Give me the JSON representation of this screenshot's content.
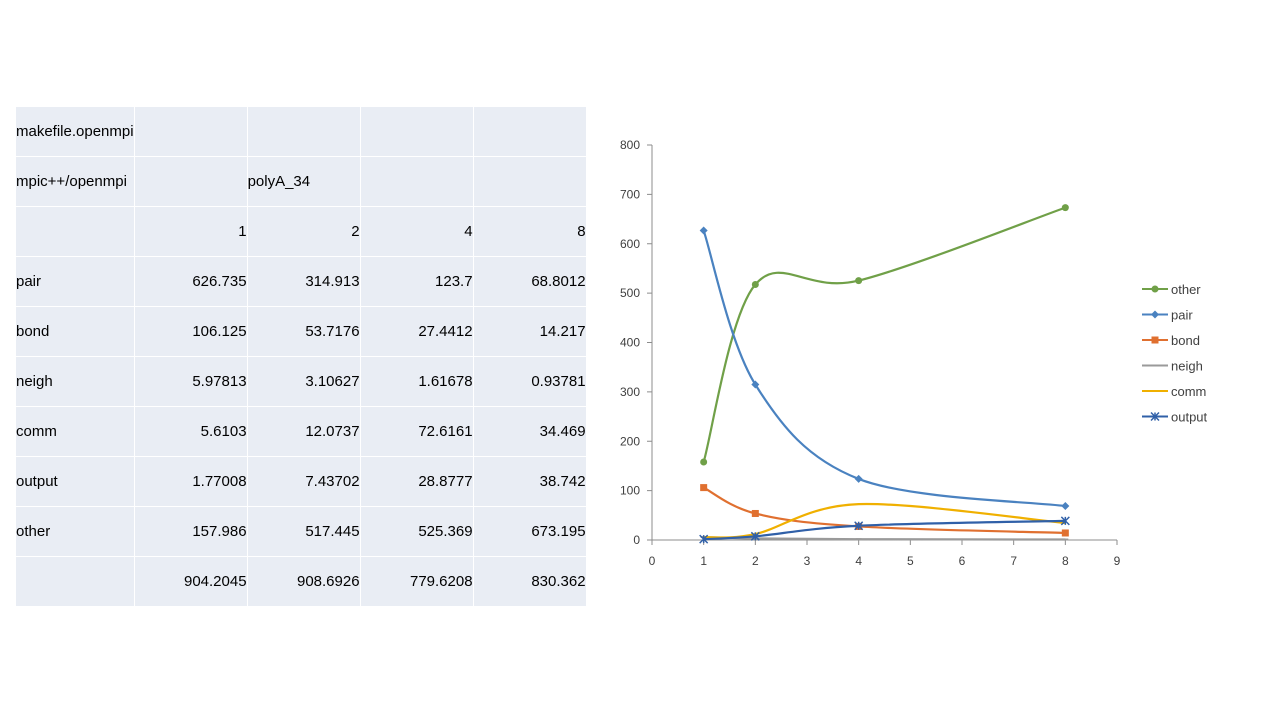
{
  "table": {
    "rows": [
      [
        "makefile.openmpi",
        "",
        "",
        "",
        ""
      ],
      [
        "mpic++/openmpi",
        "",
        "polyA_34",
        "",
        ""
      ],
      [
        "",
        "1",
        "2",
        "4",
        "8"
      ],
      [
        "pair",
        "626.735",
        "314.913",
        "123.7",
        "68.8012"
      ],
      [
        "bond",
        "106.125",
        "53.7176",
        "27.4412",
        "14.217"
      ],
      [
        "neigh",
        "5.97813",
        "3.10627",
        "1.61678",
        "0.93781"
      ],
      [
        "comm",
        "5.6103",
        "12.0737",
        "72.6161",
        "34.469"
      ],
      [
        "output",
        "1.77008",
        "7.43702",
        "28.8777",
        "38.742"
      ],
      [
        "other",
        "157.986",
        "517.445",
        "525.369",
        "673.195"
      ],
      [
        "",
        "904.2045",
        "908.6926",
        "779.6208",
        "830.362"
      ]
    ]
  },
  "chart_data": {
    "type": "line",
    "x": [
      1,
      2,
      4,
      8
    ],
    "xlim": [
      0,
      9
    ],
    "ylim": [
      0,
      800
    ],
    "xticks": [
      "0",
      "1",
      "2",
      "3",
      "4",
      "5",
      "6",
      "7",
      "8",
      "9"
    ],
    "yticks": [
      "0",
      "100",
      "200",
      "300",
      "400",
      "500",
      "600",
      "700",
      "800"
    ],
    "title": "",
    "xlabel": "",
    "ylabel": "",
    "grid": false,
    "smooth": true,
    "legend_position": "right",
    "series": [
      {
        "name": "other",
        "values": [
          157.986,
          517.445,
          525.369,
          673.195
        ],
        "color": "#70a048",
        "marker": "circle"
      },
      {
        "name": "pair",
        "values": [
          626.735,
          314.913,
          123.7,
          68.8012
        ],
        "color": "#4a82c0",
        "marker": "diamond"
      },
      {
        "name": "bond",
        "values": [
          106.125,
          53.7176,
          27.4412,
          14.217
        ],
        "color": "#e07030",
        "marker": "square"
      },
      {
        "name": "neigh",
        "values": [
          5.97813,
          3.10627,
          1.61678,
          0.93781
        ],
        "color": "#9a9a9a",
        "marker": "dash"
      },
      {
        "name": "comm",
        "values": [
          5.6103,
          12.0737,
          72.6161,
          34.469
        ],
        "color": "#f0b000",
        "marker": "none"
      },
      {
        "name": "output",
        "values": [
          1.77008,
          7.43702,
          28.8777,
          38.742
        ],
        "color": "#3060a8",
        "marker": "star"
      }
    ]
  }
}
